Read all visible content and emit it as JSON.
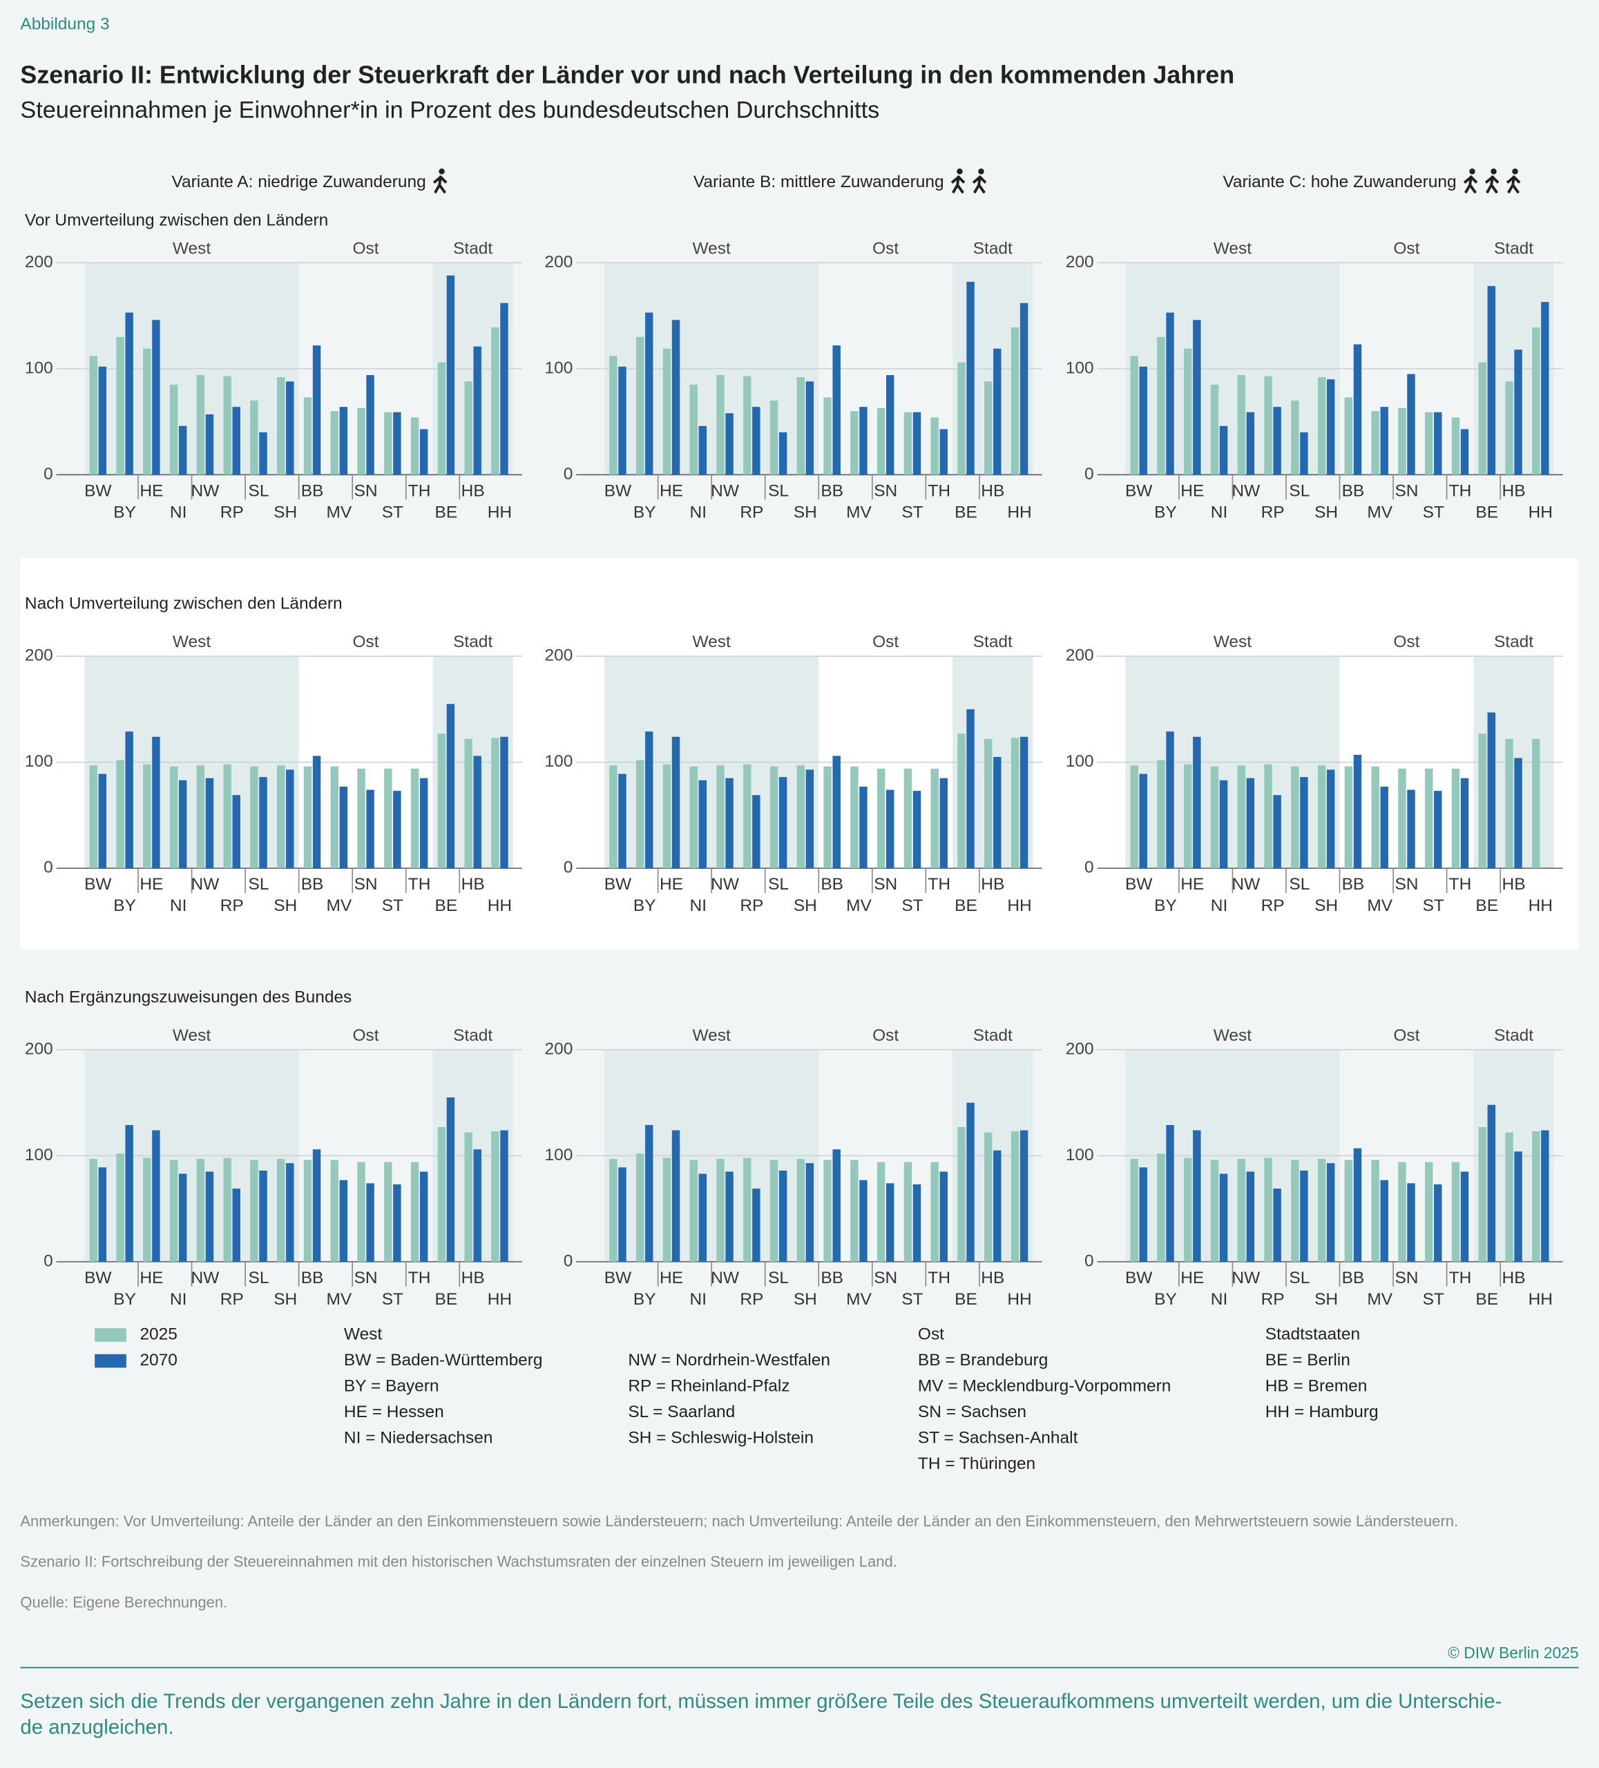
{
  "label": "Abbildung 3",
  "title": "Szenario II: Entwicklung der Steuerkraft der Länder vor und nach Verteilung in den kommenden Jahren",
  "subtitle": "Steuereinnahmen je Einwohner*in in Prozent des bundesdeutschen Durchschnitts",
  "variants": [
    "Variante A: niedrige Zuwanderung",
    "Variante B: mittlere Zuwanderung",
    "Variante C: hohe Zuwanderung"
  ],
  "rows": [
    "Vor Umverteilung zwischen den Ländern",
    "Nach Umverteilung zwischen den Ländern",
    "Nach Ergänzungszuweisungen des Bundes"
  ],
  "groups": [
    "West",
    "Ost",
    "Stadt"
  ],
  "chart_data": [
    {
      "type": "bar",
      "categories": [
        "BW",
        "BY",
        "HE",
        "NI",
        "NW",
        "RP",
        "SL",
        "SH",
        "BB",
        "MV",
        "SN",
        "ST",
        "TH",
        "BE",
        "HB",
        "HH"
      ],
      "series": [
        {
          "name": "2025",
          "color": "#94c8ba",
          "values": [
            112,
            130,
            119,
            85,
            94,
            93,
            70,
            92,
            73,
            60,
            63,
            59,
            54,
            106,
            88,
            139
          ]
        },
        {
          "name": "2070",
          "color": "#2469b0",
          "values": [
            102,
            153,
            146,
            46,
            57,
            64,
            40,
            88,
            122,
            64,
            94,
            59,
            43,
            188,
            121,
            162
          ]
        }
      ],
      "ylim": [
        0,
        200
      ],
      "yticks": [
        0,
        100,
        200
      ]
    },
    {
      "type": "bar",
      "categories": [
        "BW",
        "BY",
        "HE",
        "NI",
        "NW",
        "RP",
        "SL",
        "SH",
        "BB",
        "MV",
        "SN",
        "ST",
        "TH",
        "BE",
        "HB",
        "HH"
      ],
      "series": [
        {
          "name": "2025",
          "color": "#94c8ba",
          "values": [
            112,
            130,
            119,
            85,
            94,
            93,
            70,
            92,
            73,
            60,
            63,
            59,
            54,
            106,
            88,
            139
          ]
        },
        {
          "name": "2070",
          "color": "#2469b0",
          "values": [
            102,
            153,
            146,
            46,
            58,
            64,
            40,
            88,
            122,
            64,
            94,
            59,
            43,
            182,
            119,
            162
          ]
        }
      ],
      "ylim": [
        0,
        200
      ],
      "yticks": [
        0,
        100,
        200
      ]
    },
    {
      "type": "bar",
      "categories": [
        "BW",
        "BY",
        "HE",
        "NI",
        "NW",
        "RP",
        "SL",
        "SH",
        "BB",
        "MV",
        "SN",
        "ST",
        "TH",
        "BE",
        "HB",
        "HH"
      ],
      "series": [
        {
          "name": "2025",
          "color": "#94c8ba",
          "values": [
            112,
            130,
            119,
            85,
            94,
            93,
            70,
            92,
            73,
            60,
            63,
            59,
            54,
            106,
            88,
            139
          ]
        },
        {
          "name": "2070",
          "color": "#2469b0",
          "values": [
            102,
            153,
            146,
            46,
            59,
            64,
            40,
            90,
            123,
            64,
            95,
            59,
            43,
            178,
            118,
            163
          ]
        }
      ],
      "ylim": [
        0,
        200
      ],
      "yticks": [
        0,
        100,
        200
      ]
    },
    {
      "type": "bar",
      "categories": [
        "BW",
        "BY",
        "HE",
        "NI",
        "NW",
        "RP",
        "SL",
        "SH",
        "BB",
        "MV",
        "SN",
        "ST",
        "TH",
        "BE",
        "HB",
        "HH"
      ],
      "series": [
        {
          "name": "2025",
          "color": "#94c8ba",
          "values": [
            97,
            102,
            98,
            96,
            97,
            98,
            96,
            97,
            96,
            96,
            94,
            94,
            94,
            127,
            122,
            123
          ]
        },
        {
          "name": "2070",
          "color": "#2469b0",
          "values": [
            89,
            129,
            124,
            83,
            85,
            69,
            86,
            93,
            106,
            77,
            74,
            73,
            85,
            155,
            106,
            124
          ]
        }
      ],
      "ylim": [
        0,
        200
      ],
      "yticks": [
        0,
        100,
        200
      ]
    },
    {
      "type": "bar",
      "categories": [
        "BW",
        "BY",
        "HE",
        "NI",
        "NW",
        "RP",
        "SL",
        "SH",
        "BB",
        "MV",
        "SN",
        "ST",
        "TH",
        "BE",
        "HB",
        "HH"
      ],
      "series": [
        {
          "name": "2025",
          "color": "#94c8ba",
          "values": [
            97,
            102,
            98,
            96,
            97,
            98,
            96,
            97,
            96,
            96,
            94,
            94,
            94,
            127,
            122,
            123
          ]
        },
        {
          "name": "2070",
          "color": "#2469b0",
          "values": [
            89,
            129,
            124,
            83,
            85,
            69,
            86,
            93,
            106,
            77,
            74,
            73,
            85,
            150,
            105,
            124
          ]
        }
      ],
      "ylim": [
        0,
        200
      ],
      "yticks": [
        0,
        100,
        200
      ]
    },
    {
      "type": "bar",
      "categories": [
        "BW",
        "BY",
        "HE",
        "NI",
        "NW",
        "RP",
        "SL",
        "SH",
        "BB",
        "MV",
        "SN",
        "ST",
        "TH",
        "BE",
        "HB",
        "HH"
      ],
      "series": [
        {
          "name": "2025",
          "color": "#94c8ba",
          "values": [
            97,
            102,
            98,
            96,
            97,
            98,
            96,
            97,
            96,
            96,
            94,
            94,
            94,
            127,
            122,
            122
          ]
        },
        {
          "name": "2070",
          "color": "#2469b0",
          "values": [
            89,
            129,
            124,
            83,
            85,
            69,
            86,
            93,
            107,
            77,
            74,
            73,
            85,
            147,
            104,
            null
          ]
        }
      ],
      "ylim": [
        0,
        200
      ],
      "yticks": [
        0,
        100,
        200
      ]
    },
    {
      "type": "bar",
      "categories": [
        "BW",
        "BY",
        "HE",
        "NI",
        "NW",
        "RP",
        "SL",
        "SH",
        "BB",
        "MV",
        "SN",
        "ST",
        "TH",
        "BE",
        "HB",
        "HH"
      ],
      "series": [
        {
          "name": "2025",
          "color": "#94c8ba",
          "values": [
            97,
            102,
            98,
            96,
            97,
            98,
            96,
            97,
            96,
            96,
            94,
            94,
            94,
            127,
            122,
            123
          ]
        },
        {
          "name": "2070",
          "color": "#2469b0",
          "values": [
            89,
            129,
            124,
            83,
            85,
            69,
            86,
            93,
            106,
            77,
            74,
            73,
            85,
            155,
            106,
            124
          ]
        }
      ],
      "ylim": [
        0,
        200
      ],
      "yticks": [
        0,
        100,
        200
      ]
    },
    {
      "type": "bar",
      "categories": [
        "BW",
        "BY",
        "HE",
        "NI",
        "NW",
        "RP",
        "SL",
        "SH",
        "BB",
        "MV",
        "SN",
        "ST",
        "TH",
        "BE",
        "HB",
        "HH"
      ],
      "series": [
        {
          "name": "2025",
          "color": "#94c8ba",
          "values": [
            97,
            102,
            98,
            96,
            97,
            98,
            96,
            97,
            96,
            96,
            94,
            94,
            94,
            127,
            122,
            123
          ]
        },
        {
          "name": "2070",
          "color": "#2469b0",
          "values": [
            89,
            129,
            124,
            83,
            85,
            69,
            86,
            93,
            106,
            77,
            74,
            73,
            85,
            150,
            105,
            124
          ]
        }
      ],
      "ylim": [
        0,
        200
      ],
      "yticks": [
        0,
        100,
        200
      ]
    },
    {
      "type": "bar",
      "categories": [
        "BW",
        "BY",
        "HE",
        "NI",
        "NW",
        "RP",
        "SL",
        "SH",
        "BB",
        "MV",
        "SN",
        "ST",
        "TH",
        "BE",
        "HB",
        "HH"
      ],
      "series": [
        {
          "name": "2025",
          "color": "#94c8ba",
          "values": [
            97,
            102,
            98,
            96,
            97,
            98,
            96,
            97,
            96,
            96,
            94,
            94,
            94,
            127,
            122,
            123
          ]
        },
        {
          "name": "2070",
          "color": "#2469b0",
          "values": [
            89,
            129,
            124,
            83,
            85,
            69,
            86,
            93,
            107,
            77,
            74,
            73,
            85,
            148,
            104,
            124
          ]
        }
      ],
      "ylim": [
        0,
        200
      ],
      "yticks": [
        0,
        100,
        200
      ]
    }
  ],
  "legend": {
    "groups": [
      {
        "title": "West",
        "entries": [
          "BW = Baden-Württemberg",
          "BY = Bayern",
          "HE = Hessen",
          "NI = Niedersachsen",
          "NW = Nordrhein-Westfalen",
          "RP = Rheinland-Pfalz",
          "SL = Saarland",
          "SH = Schleswig-Holstein"
        ]
      },
      {
        "title": "Ost",
        "entries": [
          "BB = Brandeburg",
          "MV = Mecklendburg-Vorpommern",
          "SN = Sachsen",
          "ST = Sachsen-Anhalt",
          "TH = Thüringen"
        ]
      },
      {
        "title": "Stadtstaaten",
        "entries": [
          "BE = Berlin",
          "HB = Bremen",
          "HH = Hamburg"
        ]
      }
    ]
  },
  "notes": [
    "Anmerkungen: Vor Umverteilung: Anteile der Länder an den Einkommensteuern sowie Ländersteuern; nach Umverteilung: Anteile der Länder an den Einkommensteuern, den Mehrwertsteuern sowie Ländersteuern.",
    "Szenario II: Fortschreibung der Steuereinnahmen mit den historischen Wachstumsraten der einzelnen Steuern im jeweiligen Land.",
    "Quelle: Eigene Berechnungen."
  ],
  "copyright": "© DIW Berlin 2025",
  "summary": [
    "Setzen sich die Trends der vergangenen zehn Jahre in den Ländern fort, müssen immer größere Teile des Steueraufkommens umverteilt werden, um die Unterschie-",
    "de anzugleichen."
  ]
}
